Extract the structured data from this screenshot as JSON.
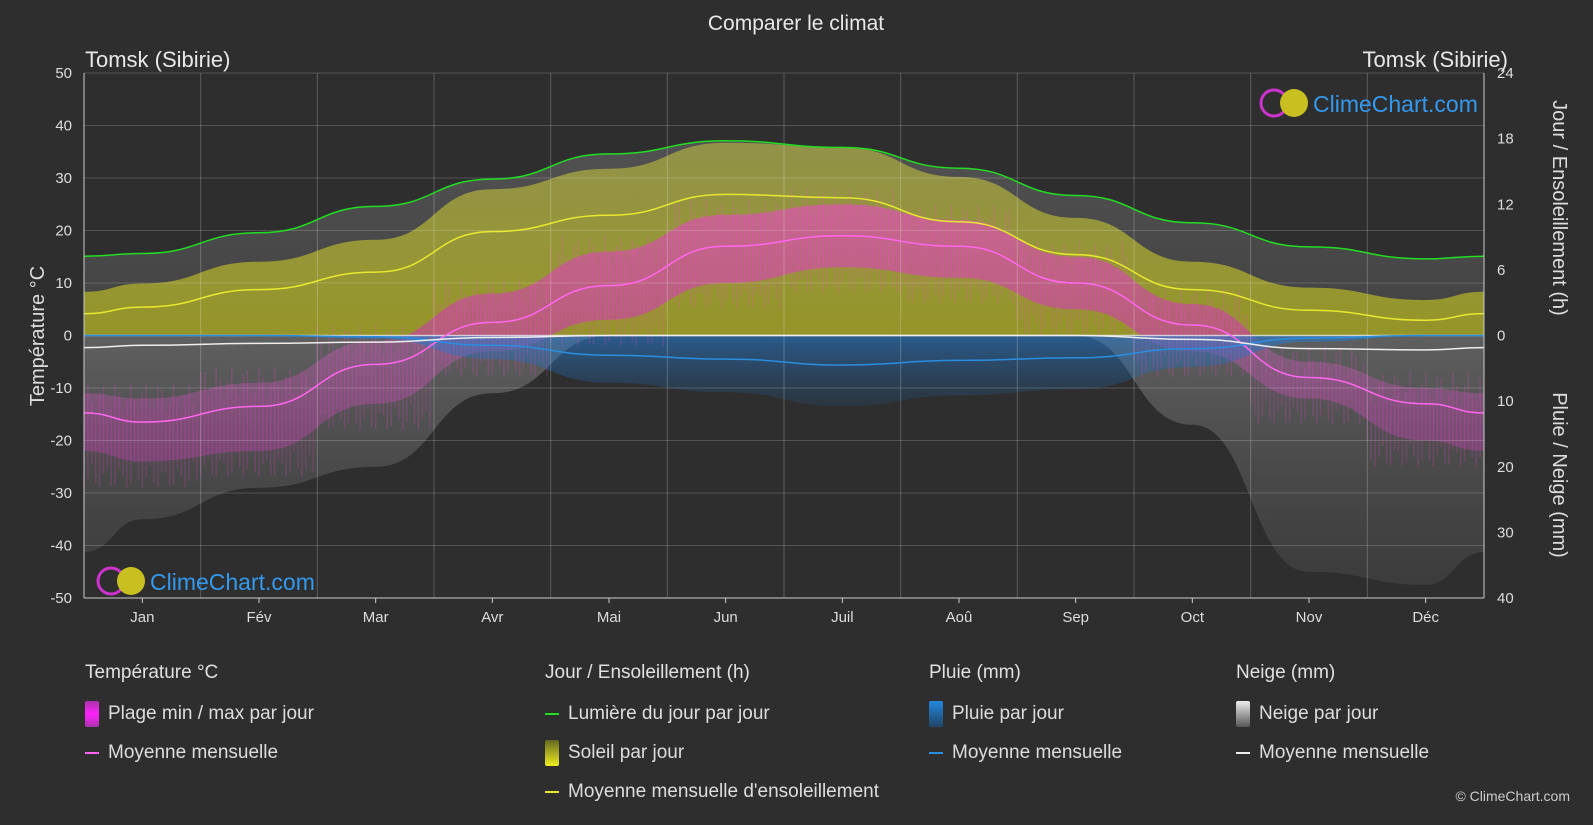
{
  "chart_data": {
    "type": "area",
    "title": "Comparer le climat",
    "location_left": "Tomsk (Sibirie)",
    "location_right": "Tomsk (Sibirie)",
    "months": [
      "Jan",
      "Fév",
      "Mar",
      "Avr",
      "Mai",
      "Jun",
      "Juil",
      "Aoû",
      "Sep",
      "Oct",
      "Nov",
      "Déc"
    ],
    "y_left": {
      "label": "Température °C",
      "range": [
        -50,
        50
      ],
      "ticks": [
        50,
        40,
        30,
        20,
        10,
        0,
        -10,
        -20,
        -30,
        -40,
        -50
      ]
    },
    "y_right_top": {
      "label": "Jour / Ensoleillement (h)",
      "range": [
        0,
        24
      ],
      "ticks": [
        24,
        18,
        12,
        6,
        0
      ]
    },
    "y_right_bottom": {
      "label": "Pluie / Neige (mm)",
      "range": [
        0,
        40
      ],
      "ticks": [
        10,
        20,
        30,
        40
      ]
    },
    "grid": true,
    "series": {
      "daylight_hours": [
        7.5,
        9.4,
        11.8,
        14.3,
        16.6,
        17.8,
        17.2,
        15.3,
        12.8,
        10.3,
        8.1,
        7.0
      ],
      "sunshine_monthly_hours": [
        2.6,
        4.2,
        5.8,
        9.5,
        11.0,
        12.9,
        12.6,
        10.4,
        7.4,
        4.2,
        2.3,
        1.4
      ],
      "temp_monthly_mean_c": [
        -16.5,
        -13.5,
        -5.5,
        2.5,
        9.5,
        17.0,
        19.0,
        17.0,
        10.0,
        2.0,
        -8.0,
        -13.0
      ],
      "temp_daily_max_c": [
        -12,
        -9,
        -1,
        8,
        16,
        23,
        25,
        22,
        15,
        6,
        -5,
        -10
      ],
      "temp_daily_min_c": [
        -24,
        -22,
        -13,
        -3,
        3,
        10,
        13,
        11,
        5,
        -3,
        -12,
        -20
      ],
      "rain_monthly_mean_mm": [
        0,
        0,
        0.2,
        1.5,
        3.0,
        3.6,
        4.5,
        3.8,
        3.4,
        2.0,
        0.4,
        0
      ],
      "snow_monthly_mean_mm": [
        1.5,
        1.2,
        1.0,
        0.3,
        0,
        0,
        0,
        0,
        0,
        0.6,
        2.0,
        2.2
      ]
    },
    "legend": [
      {
        "title": "Température °C",
        "items": [
          {
            "kind": "box",
            "color": "#d020d0",
            "label": "Plage min / max par jour"
          },
          {
            "kind": "line",
            "color": "#ff66ee",
            "label": "Moyenne mensuelle"
          }
        ]
      },
      {
        "title": "Jour / Ensoleillement (h)",
        "items": [
          {
            "kind": "line",
            "color": "#22dd22",
            "label": "Lumière du jour par jour"
          },
          {
            "kind": "box",
            "color": "#c8c830",
            "label": "Soleil par jour"
          },
          {
            "kind": "line",
            "color": "#e8e830",
            "label": "Moyenne mensuelle d'ensoleillement"
          }
        ]
      },
      {
        "title": "Pluie (mm)",
        "items": [
          {
            "kind": "box",
            "color": "#2288dd",
            "label": "Pluie par jour"
          },
          {
            "kind": "line",
            "color": "#2a8ee0",
            "label": "Moyenne mensuelle"
          }
        ]
      },
      {
        "title": "Neige (mm)",
        "items": [
          {
            "kind": "box",
            "color": "#cccccc",
            "label": "Neige par jour"
          },
          {
            "kind": "line",
            "color": "#eeeeee",
            "label": "Moyenne mensuelle"
          }
        ]
      }
    ]
  },
  "watermark": "ClimeChart.com",
  "copyright": "© ClimeChart.com",
  "colors": {
    "background": "#2e2e2e",
    "daylight": "#22dd22",
    "sunshine": "#e8e830",
    "temp_mean": "#ff66ee",
    "rain": "#2a8ee0",
    "snow": "#eeeeee",
    "watermark": "#3399ee"
  }
}
